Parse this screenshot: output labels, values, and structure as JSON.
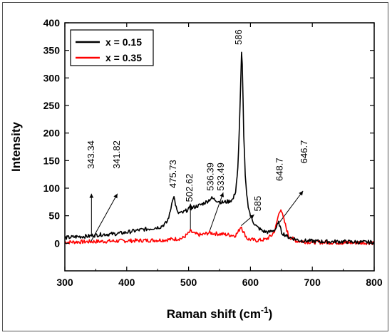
{
  "chart_data": {
    "type": "line",
    "title": "",
    "xlabel": "Raman shift (cm",
    "xlabel_sup": "-1",
    "xlabel_close": ")",
    "ylabel": "Intensity",
    "xlim": [
      300,
      800
    ],
    "ylim": [
      -50,
      400
    ],
    "x_ticks": [
      300,
      400,
      500,
      600,
      700,
      800
    ],
    "y_ticks": [
      0,
      50,
      100,
      150,
      200,
      250,
      300,
      350,
      400
    ],
    "grid": false,
    "legend_position": "top-left",
    "series": [
      {
        "name": "x = 0.15",
        "color": "#000000",
        "points": [
          [
            300,
            10
          ],
          [
            320,
            12
          ],
          [
            340,
            13
          ],
          [
            343,
            14
          ],
          [
            360,
            16
          ],
          [
            380,
            17
          ],
          [
            395,
            19
          ],
          [
            400,
            20
          ],
          [
            420,
            24
          ],
          [
            440,
            27
          ],
          [
            455,
            30
          ],
          [
            465,
            38
          ],
          [
            470,
            55
          ],
          [
            474,
            80
          ],
          [
            476,
            86
          ],
          [
            478,
            75
          ],
          [
            482,
            55
          ],
          [
            490,
            55
          ],
          [
            500,
            62
          ],
          [
            510,
            66
          ],
          [
            520,
            70
          ],
          [
            530,
            76
          ],
          [
            537,
            82
          ],
          [
            545,
            78
          ],
          [
            555,
            74
          ],
          [
            565,
            76
          ],
          [
            572,
            80
          ],
          [
            576,
            95
          ],
          [
            580,
            140
          ],
          [
            583,
            240
          ],
          [
            585,
            330
          ],
          [
            586,
            355
          ],
          [
            587,
            320
          ],
          [
            589,
            200
          ],
          [
            592,
            110
          ],
          [
            596,
            70
          ],
          [
            600,
            50
          ],
          [
            605,
            38
          ],
          [
            610,
            30
          ],
          [
            620,
            22
          ],
          [
            630,
            20
          ],
          [
            640,
            25
          ],
          [
            646,
            38
          ],
          [
            650,
            20
          ],
          [
            660,
            12
          ],
          [
            680,
            5
          ],
          [
            700,
            4
          ],
          [
            720,
            3
          ],
          [
            750,
            3
          ],
          [
            780,
            2
          ],
          [
            800,
            2
          ]
        ]
      },
      {
        "name": "x = 0.35",
        "color": "#ff0000",
        "points": [
          [
            300,
            2
          ],
          [
            340,
            3
          ],
          [
            380,
            4
          ],
          [
            420,
            5
          ],
          [
            460,
            6
          ],
          [
            490,
            9
          ],
          [
            500,
            18
          ],
          [
            503,
            22
          ],
          [
            510,
            17
          ],
          [
            520,
            15
          ],
          [
            533,
            19
          ],
          [
            540,
            18
          ],
          [
            560,
            16
          ],
          [
            575,
            14
          ],
          [
            580,
            20
          ],
          [
            585,
            32
          ],
          [
            588,
            22
          ],
          [
            595,
            8
          ],
          [
            610,
            5
          ],
          [
            625,
            7
          ],
          [
            635,
            15
          ],
          [
            640,
            25
          ],
          [
            645,
            50
          ],
          [
            649,
            64
          ],
          [
            652,
            50
          ],
          [
            656,
            35
          ],
          [
            662,
            12
          ],
          [
            675,
            4
          ],
          [
            700,
            2
          ],
          [
            750,
            1
          ],
          [
            800,
            1
          ]
        ]
      }
    ],
    "annotations": [
      {
        "text": "586",
        "x": 586,
        "y": 355,
        "series": 0
      },
      {
        "text": "475.73",
        "x": 476,
        "y": 86,
        "series": 0
      },
      {
        "text": "536.39",
        "x": 537,
        "y": 82,
        "series": 0
      },
      {
        "text": "502.62",
        "x": 503,
        "y": 22,
        "series": 1
      },
      {
        "text": "533.49",
        "x": 533,
        "y": 19,
        "series": 1
      },
      {
        "text": "343.34",
        "x": 343,
        "y": 14,
        "series": 0
      },
      {
        "text": "341.82",
        "x": 342,
        "y": 3,
        "series": 1
      },
      {
        "text": "585",
        "x": 585,
        "y": 32,
        "series": 1
      },
      {
        "text": "648.7",
        "x": 649,
        "y": 64,
        "series": 1
      },
      {
        "text": "646.7",
        "x": 647,
        "y": 38,
        "series": 0
      }
    ]
  }
}
